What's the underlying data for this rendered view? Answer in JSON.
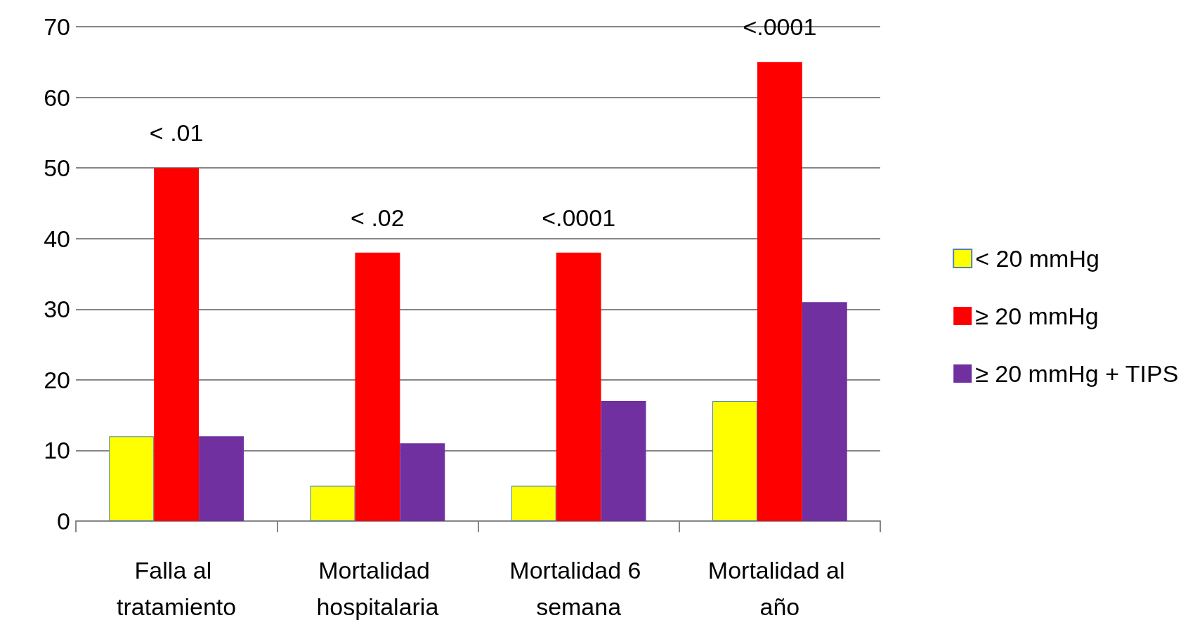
{
  "chart_data": {
    "type": "bar",
    "categories": [
      "Falla al tratamiento",
      "Mortalidad hospitalaria",
      "Mortalidad 6 semana",
      "Mortalidad al año"
    ],
    "series": [
      {
        "name": "< 20 mmHg",
        "color": "#ffff00",
        "values": [
          12,
          5,
          5,
          17
        ]
      },
      {
        "name": "≥ 20 mmHg",
        "color": "#ff0000",
        "values": [
          50,
          38,
          38,
          65
        ]
      },
      {
        "name": "≥ 20 mmHg + TIPS",
        "color": "#7030a0",
        "values": [
          12,
          11,
          17,
          31
        ]
      }
    ],
    "ylim": [
      0,
      70
    ],
    "yticks": [
      0,
      10,
      20,
      30,
      40,
      50,
      60,
      70
    ],
    "grid": "y",
    "legend": "right",
    "annotations": [
      "< .01",
      "< .02",
      "<.0001",
      "<.0001"
    ]
  }
}
